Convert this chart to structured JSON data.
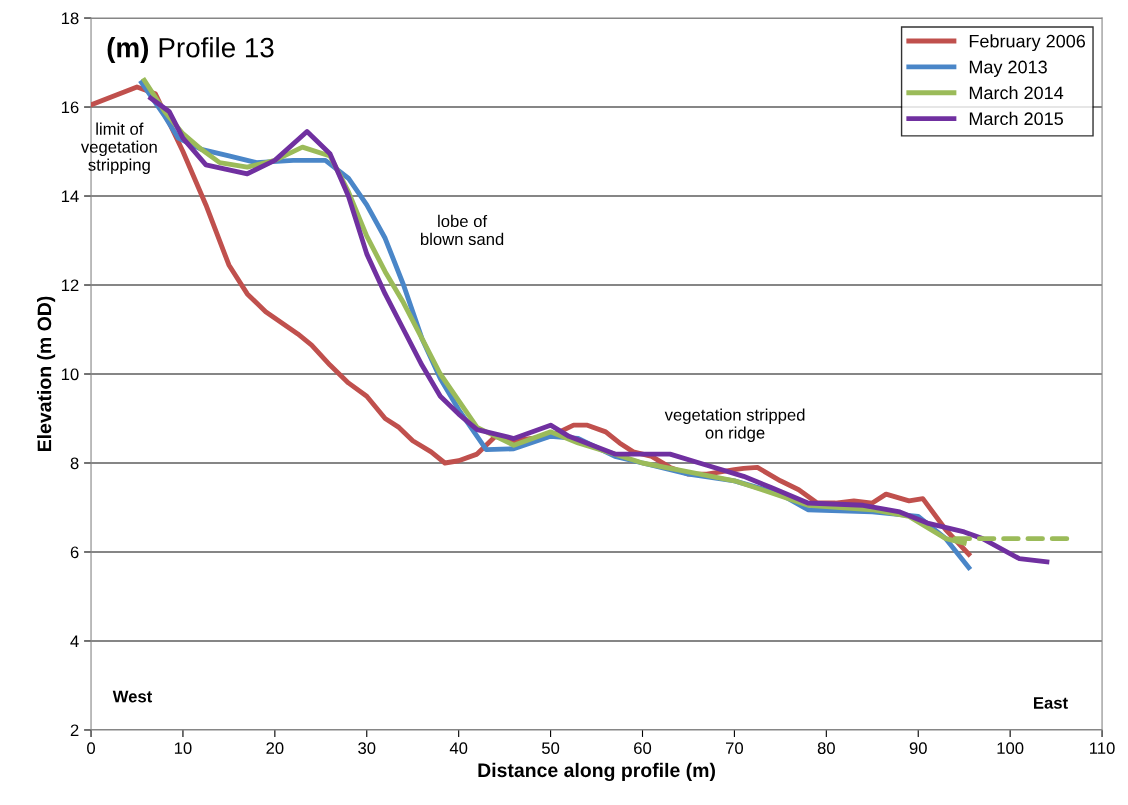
{
  "chart_data": {
    "type": "line",
    "title": "(m) Profile 13",
    "xlabel": "Distance along profile (m)",
    "ylabel": "Elevation (m OD)",
    "xlim": [
      0,
      110
    ],
    "xticks": [
      0,
      10,
      20,
      30,
      40,
      50,
      60,
      70,
      80,
      90,
      100,
      110
    ],
    "ylim": [
      2,
      18
    ],
    "yticks": [
      2,
      4,
      6,
      8,
      10,
      12,
      14,
      16,
      18
    ],
    "grid": "y",
    "legend": "top right",
    "marker": "none",
    "series": [
      {
        "name": "February 2006",
        "color": "#c0504d",
        "x": [
          0,
          5,
          7,
          10,
          12.5,
          15,
          17,
          19,
          22.5,
          24,
          26,
          28,
          30,
          32,
          33.5,
          35,
          37,
          38.5,
          40,
          42,
          44,
          46,
          48,
          50,
          52.5,
          54,
          56,
          57.5,
          59,
          61,
          63,
          65,
          67,
          70,
          71,
          72.5,
          75,
          77,
          79,
          81,
          83,
          85,
          86.5,
          89,
          90.5,
          93,
          95.5
        ],
        "values": [
          16.05,
          16.45,
          16.3,
          15.0,
          13.8,
          12.45,
          11.8,
          11.4,
          10.9,
          10.65,
          10.2,
          9.8,
          9.5,
          9.0,
          8.8,
          8.5,
          8.25,
          8.0,
          8.05,
          8.2,
          8.6,
          8.5,
          8.55,
          8.6,
          8.85,
          8.85,
          8.7,
          8.45,
          8.25,
          8.15,
          7.9,
          7.75,
          7.75,
          7.85,
          7.88,
          7.9,
          7.6,
          7.4,
          7.1,
          7.1,
          7.15,
          7.1,
          7.3,
          7.15,
          7.2,
          6.5,
          5.95
        ]
      },
      {
        "name": "May 2013",
        "color": "#4a86c8",
        "x": [
          5.5,
          8,
          9.5,
          12,
          15,
          18,
          22,
          25.5,
          28,
          30,
          32,
          34,
          36,
          38,
          40,
          41.5,
          43,
          46,
          50,
          53,
          57,
          60,
          65,
          70,
          75,
          78,
          85,
          90,
          93,
          95.5
        ],
        "values": [
          16.55,
          15.8,
          15.3,
          15.05,
          14.9,
          14.75,
          14.8,
          14.8,
          14.4,
          13.8,
          13.05,
          12.0,
          10.8,
          9.9,
          9.2,
          8.75,
          8.3,
          8.32,
          8.6,
          8.55,
          8.15,
          8.0,
          7.75,
          7.6,
          7.3,
          6.95,
          6.9,
          6.8,
          6.3,
          5.65
        ]
      },
      {
        "name": "March 2014",
        "color": "#9bbb59",
        "x": [
          5.8,
          8,
          10,
          12,
          14,
          17,
          20,
          23,
          26,
          28,
          30,
          32,
          34,
          36,
          38,
          40,
          42,
          46,
          50,
          53,
          57,
          60,
          65,
          70,
          73,
          78,
          85,
          89,
          93,
          95
        ],
        "values": [
          16.6,
          15.9,
          15.4,
          15.05,
          14.75,
          14.65,
          14.8,
          15.1,
          14.9,
          14.1,
          13.1,
          12.3,
          11.6,
          10.8,
          10.0,
          9.4,
          8.8,
          8.4,
          8.7,
          8.45,
          8.2,
          8.0,
          7.8,
          7.6,
          7.4,
          7.05,
          6.95,
          6.8,
          6.3,
          6.2
        ]
      },
      {
        "name": "March 2015",
        "color": "#7030a0",
        "x": [
          6.5,
          8.5,
          10,
          12.5,
          17,
          20,
          23.5,
          26,
          28,
          30,
          32,
          34,
          36,
          38,
          40,
          42,
          46,
          50,
          52,
          57,
          63,
          67,
          71,
          74,
          78,
          84,
          88,
          91,
          95,
          97,
          101,
          104
        ],
        "values": [
          16.2,
          15.9,
          15.3,
          14.7,
          14.5,
          14.8,
          15.45,
          14.95,
          14.0,
          12.7,
          11.8,
          11.0,
          10.2,
          9.5,
          9.1,
          8.75,
          8.55,
          8.85,
          8.6,
          8.2,
          8.2,
          7.95,
          7.7,
          7.45,
          7.1,
          7.05,
          6.9,
          6.65,
          6.45,
          6.3,
          5.85,
          5.78
        ]
      },
      {
        "color": "#9bbb59",
        "line_style": "dashed",
        "x": [
          94,
          107
        ],
        "values": [
          6.3,
          6.3
        ]
      }
    ],
    "annotations": [
      "limit of\nvegetation\nstripping",
      "lobe of\nblown sand",
      "vegetation stripped\non ridge",
      "West",
      "East"
    ]
  }
}
